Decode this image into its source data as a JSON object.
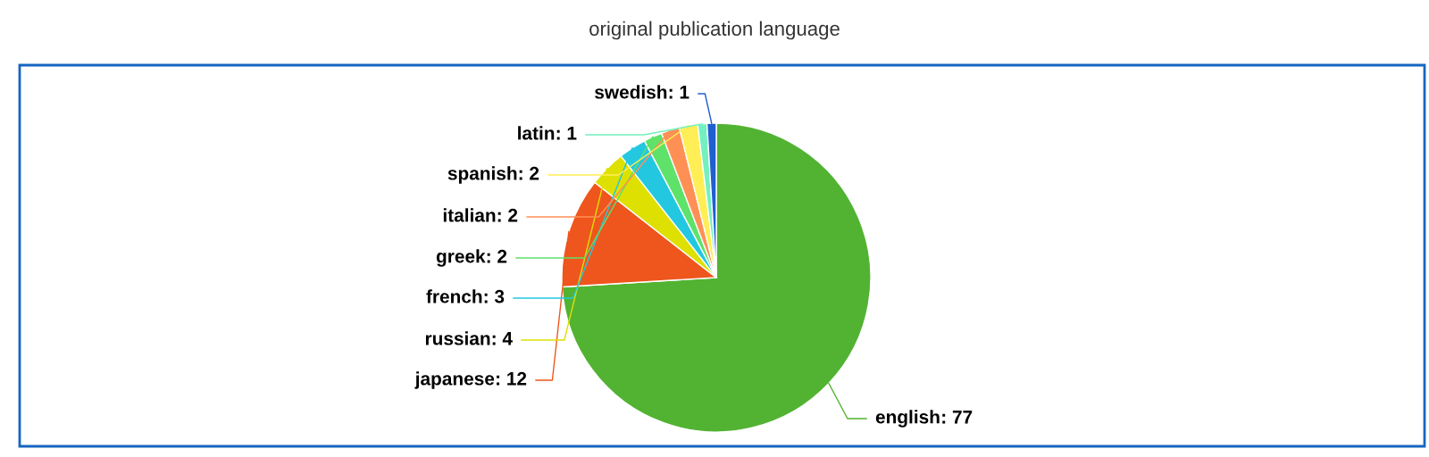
{
  "chart_data": {
    "type": "pie",
    "title": "original publication language",
    "categories": [
      "english",
      "japanese",
      "russian",
      "french",
      "greek",
      "italian",
      "spanish",
      "latin",
      "swedish"
    ],
    "values": [
      77,
      12,
      4,
      3,
      2,
      2,
      2,
      1,
      1
    ],
    "colors": [
      "#52b332",
      "#ee561d",
      "#dde000",
      "#23c8e0",
      "#5ee26a",
      "#ff9055",
      "#ffee55",
      "#73f0c0",
      "#1f5fd0"
    ],
    "value_labels": [
      ": 77",
      ": 12",
      ": 4",
      ": 3",
      ": 2",
      ": 2",
      ": 2",
      ": 1",
      ": 1"
    ],
    "legend": false
  }
}
